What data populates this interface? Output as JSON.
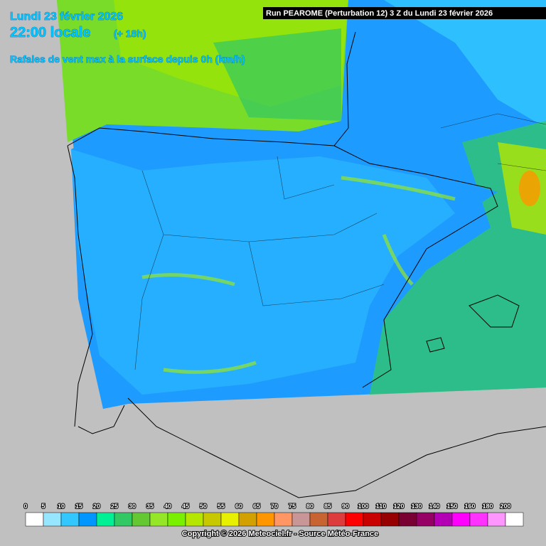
{
  "header": {
    "date": "Lundi 23 février 2026",
    "time": "22:00 locale",
    "lead": "(+ 18h)",
    "parameter": "Rafales de vent max à la surface depuis 0h (km/h)",
    "run": "Run PEAROME (Perturbation 12) 3 Z du Lundi 23 février 2026"
  },
  "legend": {
    "labels": [
      0,
      5,
      10,
      15,
      20,
      25,
      30,
      35,
      40,
      45,
      50,
      55,
      60,
      65,
      70,
      75,
      80,
      85,
      90,
      100,
      110,
      120,
      130,
      140,
      150,
      160,
      180,
      200
    ],
    "colors": [
      "#ffffff",
      "#96e6ff",
      "#32c8ff",
      "#0096ff",
      "#00f096",
      "#32c864",
      "#64c832",
      "#96e628",
      "#78f000",
      "#b4e600",
      "#c8c800",
      "#e6f000",
      "#d2a000",
      "#ff9600",
      "#ff9664",
      "#c89696",
      "#c86432",
      "#dc3c3c",
      "#ff0000",
      "#c80000",
      "#960000",
      "#780032",
      "#960064",
      "#b400b4",
      "#ff00ff",
      "#ff32ff",
      "#ff96ff",
      "#ffffff"
    ]
  },
  "footer": {
    "copyright": "Copyright © 2026 Meteociel.fr - Source Météo-France"
  }
}
